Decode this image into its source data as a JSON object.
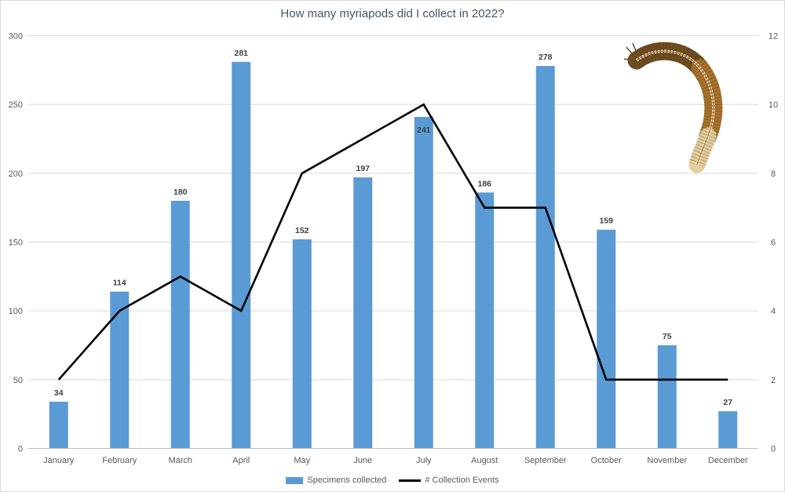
{
  "title": "How many myriapods did I collect in 2022?",
  "chart_data": {
    "type": "bar",
    "subtype": "combo-bar-line",
    "categories": [
      "January",
      "February",
      "March",
      "April",
      "May",
      "June",
      "July",
      "August",
      "September",
      "October",
      "November",
      "December"
    ],
    "series": [
      {
        "name": "Specimens collected",
        "type": "bar",
        "axis": "left",
        "color": "#5B9BD5",
        "values": [
          34,
          114,
          180,
          281,
          152,
          197,
          241,
          186,
          278,
          159,
          75,
          27
        ],
        "data_labels": true,
        "label_inside_indices": [
          6
        ]
      },
      {
        "name": "# Collection Events",
        "type": "line",
        "axis": "right",
        "color": "#000000",
        "values": [
          2,
          4,
          5,
          4,
          8,
          9,
          10,
          7,
          7,
          2,
          2,
          2
        ],
        "data_labels": false
      }
    ],
    "left_axis": {
      "min": 0,
      "max": 300,
      "step": 50,
      "ticks": [
        "0",
        "50",
        "100",
        "150",
        "200",
        "250",
        "300"
      ]
    },
    "right_axis": {
      "min": 0,
      "max": 12,
      "step": 2,
      "ticks": [
        "0",
        "2",
        "4",
        "6",
        "8",
        "10",
        "12"
      ]
    },
    "grid": true,
    "legend_position": "bottom",
    "title": "How many myriapods did I collect in 2022?",
    "xlabel": "",
    "ylabel": ""
  },
  "legend": {
    "items": [
      {
        "label": "Specimens collected",
        "swatch": "bar"
      },
      {
        "label": "# Collection Events",
        "swatch": "line"
      }
    ]
  },
  "colors": {
    "bar": "#5B9BD5",
    "line": "#000000",
    "gridline": "#D9D9D9",
    "axis_line": "#BFBFBF",
    "axis_text": "#595959",
    "data_label_text": "#404040",
    "title_text": "#44546A"
  },
  "decoration": {
    "image": "millipede-photo",
    "description": "brown millipede curled in a hook shape, top right of plot"
  }
}
